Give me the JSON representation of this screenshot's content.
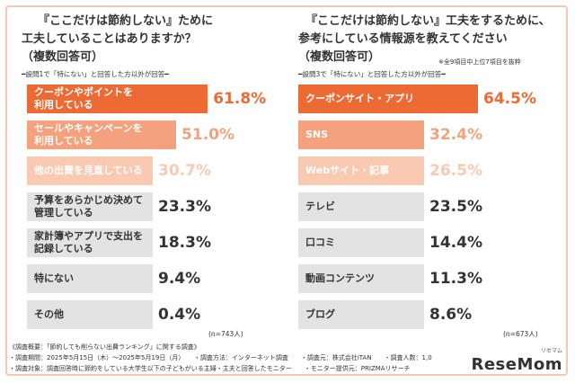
{
  "left": {
    "title_lines": [
      "『ここだけは節約しない』ために",
      "工夫していることはありますか？",
      "（複数回答可）"
    ],
    "subtitle": "━設問1で「特にない」と回答した方以外が回答━",
    "n_label": "(n=743人)"
  },
  "right": {
    "title_lines": [
      "『ここだけは節約しない』工夫をするために、",
      "参考にしている情報源を教えてください",
      "（複数回答可）"
    ],
    "note": "※全9項目中上位7項目を抜粋",
    "subtitle": "━設問3で「特にない」と回答した方以外が回答━",
    "n_label": "(n=673人)"
  },
  "chart_data": [
    {
      "type": "bar",
      "orientation": "horizontal",
      "title": "『ここだけは節約しない』ために工夫していることはありますか？（複数回答可）",
      "categories": [
        "クーポンやポイントを\n利用している",
        "セールやキャンペーンを\n利用している",
        "他の出費を見直している",
        "予算をあらかじめ決めて\n管理している",
        "家計簿やアプリで支出を\n記録している",
        "特にない",
        "その他"
      ],
      "values": [
        61.8,
        51.0,
        30.7,
        23.3,
        18.3,
        9.4,
        0.4
      ],
      "value_labels": [
        "61.8%",
        "51.0%",
        "30.7%",
        "23.3%",
        "18.3%",
        "9.4%",
        "0.4%"
      ],
      "unit": "%",
      "xlim": [
        0,
        100
      ],
      "grid": false,
      "colors": [
        "#ec6a34",
        "#f4a27e",
        "#f9c9b2",
        "#e3e3e3",
        "#e3e3e3",
        "#e3e3e3",
        "#e3e3e3"
      ],
      "label_colors": [
        "#ffffff",
        "#ffffff",
        "#ffffff",
        "#333333",
        "#333333",
        "#333333",
        "#333333"
      ],
      "value_colors": [
        "#ec6a34",
        "#f4a27e",
        "#f9c9b2",
        "#333333",
        "#333333",
        "#333333",
        "#333333"
      ]
    },
    {
      "type": "bar",
      "orientation": "horizontal",
      "title": "『ここだけは節約しない』工夫をするために、参考にしている情報源を教えてください（複数回答可）",
      "categories": [
        "クーポンサイト・アプリ",
        "SNS",
        "Webサイト・記事",
        "テレビ",
        "口コミ",
        "動画コンテンツ",
        "ブログ"
      ],
      "values": [
        64.5,
        32.4,
        26.5,
        23.5,
        14.4,
        11.3,
        8.6
      ],
      "value_labels": [
        "64.5%",
        "32.4%",
        "26.5%",
        "23.5%",
        "14.4%",
        "11.3%",
        "8.6%"
      ],
      "unit": "%",
      "xlim": [
        0,
        100
      ],
      "grid": false,
      "colors": [
        "#ec6a34",
        "#f4a27e",
        "#f9c9b2",
        "#e3e3e3",
        "#e3e3e3",
        "#e3e3e3",
        "#e3e3e3"
      ],
      "label_colors": [
        "#ffffff",
        "#ffffff",
        "#ffffff",
        "#333333",
        "#333333",
        "#333333",
        "#333333"
      ],
      "value_colors": [
        "#ec6a34",
        "#f4a27e",
        "#f9c9b2",
        "#333333",
        "#333333",
        "#333333",
        "#333333"
      ]
    }
  ],
  "footer": {
    "line1": "《調査概要：「節約しても削らない出費ランキング」に関する調査》",
    "line2": "・調査期間：2025年5月15日（木）〜2025年5月19日（月）　　・調査方法：インターネット調査　　・調査元：株式会社iTAN　　・調査人数：1,0",
    "line3": "・調査対象：調査回答時に節約をしている大学生以下の子どもがいる主婦・主夫と回答したモニター　　・モニター提供元：PRIZMAリサーチ"
  },
  "logo": {
    "text": "ReseMom",
    "sub": "リセマム"
  }
}
